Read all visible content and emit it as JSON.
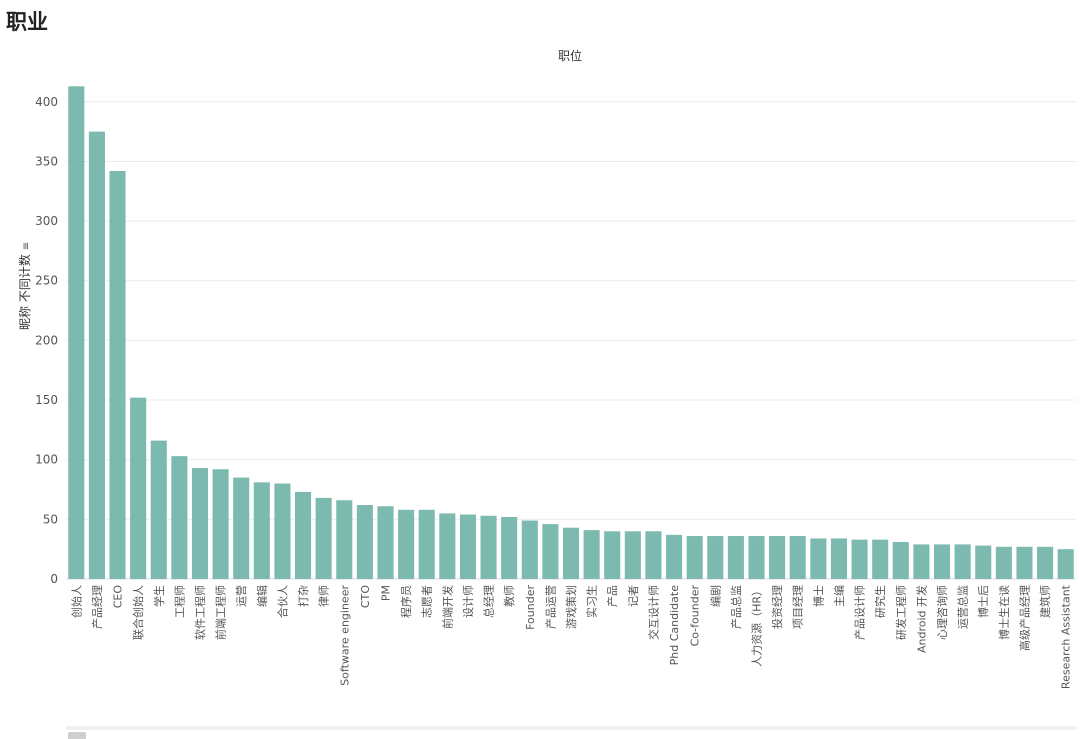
{
  "page_title": "职业",
  "chart_data": {
    "type": "bar",
    "title": "职位",
    "xlabel": "",
    "ylabel": "昵称 不同计数",
    "ylim": [
      0,
      430
    ],
    "yticks": [
      0,
      50,
      100,
      150,
      200,
      250,
      300,
      350,
      400
    ],
    "grid": true,
    "bar_color": "#7cbab0",
    "categories": [
      "创始人",
      "产品经理",
      "CEO",
      "联合创始人",
      "学生",
      "工程师",
      "软件工程师",
      "前端工程师",
      "运营",
      "编辑",
      "合伙人",
      "打杂",
      "律师",
      "Software engineer",
      "CTO",
      "PM",
      "程序员",
      "志愿者",
      "前端开发",
      "设计师",
      "总经理",
      "教师",
      "Founder",
      "产品运营",
      "游戏策划",
      "实习生",
      "产品",
      "记者",
      "交互设计师",
      "Phd Candidate",
      "Co-founder",
      "编剧",
      "产品总监",
      "人力资源（HR）",
      "投资经理",
      "项目经理",
      "博士",
      "主编",
      "产品设计师",
      "研究生",
      "研发工程师",
      "Android 开发",
      "心理咨询师",
      "运营总监",
      "博士后",
      "博士生在读",
      "高级产品经理",
      "建筑师",
      "Research Assistant"
    ],
    "values": [
      413,
      375,
      342,
      152,
      116,
      103,
      93,
      92,
      85,
      81,
      80,
      73,
      68,
      66,
      62,
      61,
      58,
      58,
      55,
      54,
      53,
      52,
      49,
      46,
      43,
      41,
      40,
      40,
      40,
      37,
      36,
      36,
      36,
      36,
      36,
      36,
      34,
      34,
      33,
      33,
      31,
      29,
      29,
      29,
      28,
      27,
      27,
      27,
      25
    ]
  }
}
